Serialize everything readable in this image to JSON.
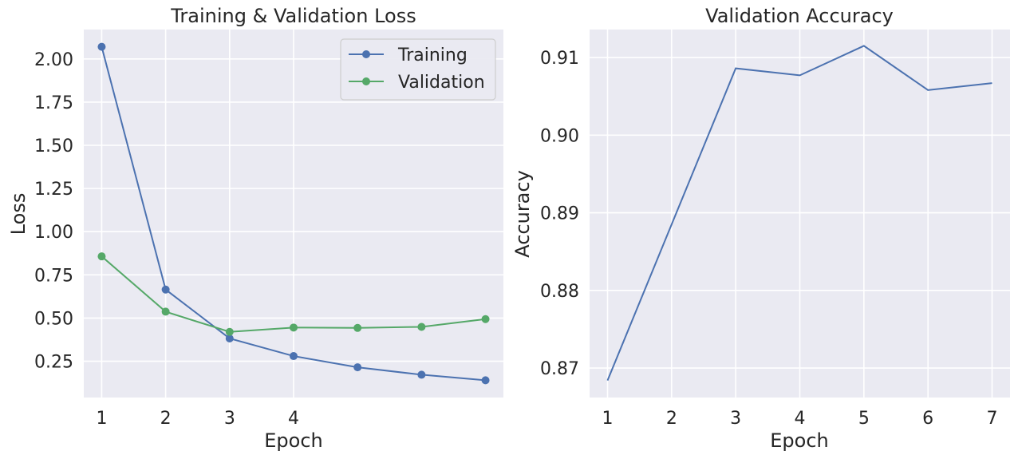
{
  "chart_data": [
    {
      "type": "line",
      "title": "Training & Validation Loss",
      "xlabel": "Epoch",
      "ylabel": "Loss",
      "x": [
        1,
        2,
        3,
        4,
        5,
        6,
        7
      ],
      "xticks": [
        1,
        2,
        3,
        4
      ],
      "xlim": [
        0.72,
        7.28
      ],
      "ylim": [
        0.04,
        2.17
      ],
      "yticks": [
        0.25,
        0.5,
        0.75,
        1.0,
        1.25,
        1.5,
        1.75,
        2.0
      ],
      "ytick_labels": [
        "0.25",
        "0.50",
        "0.75",
        "1.00",
        "1.25",
        "1.50",
        "1.75",
        "2.00"
      ],
      "grid": true,
      "legend": "top-right",
      "series": [
        {
          "name": "Training",
          "color": "#4c72b0",
          "marker": "circle",
          "values": [
            2.07,
            0.665,
            0.382,
            0.28,
            0.215,
            0.172,
            0.14
          ]
        },
        {
          "name": "Validation",
          "color": "#55a868",
          "marker": "circle",
          "values": [
            0.857,
            0.537,
            0.42,
            0.445,
            0.443,
            0.449,
            0.494
          ]
        }
      ]
    },
    {
      "type": "line",
      "title": "Validation Accuracy",
      "xlabel": "Epoch",
      "ylabel": "Accuracy",
      "x": [
        1,
        2,
        3,
        4,
        5,
        6,
        7
      ],
      "xticks": [
        1,
        2,
        3,
        4,
        5,
        6,
        7
      ],
      "xlim": [
        0.72,
        7.28
      ],
      "ylim": [
        0.8662,
        0.9136
      ],
      "yticks": [
        0.87,
        0.88,
        0.89,
        0.9,
        0.91
      ],
      "ytick_labels": [
        "0.87",
        "0.88",
        "0.89",
        "0.90",
        "0.91"
      ],
      "grid": true,
      "series": [
        {
          "color": "#4c72b0",
          "marker": "none",
          "values": [
            0.8684,
            0.8885,
            0.9086,
            0.9077,
            0.9115,
            0.9058,
            0.9067
          ]
        }
      ]
    }
  ]
}
